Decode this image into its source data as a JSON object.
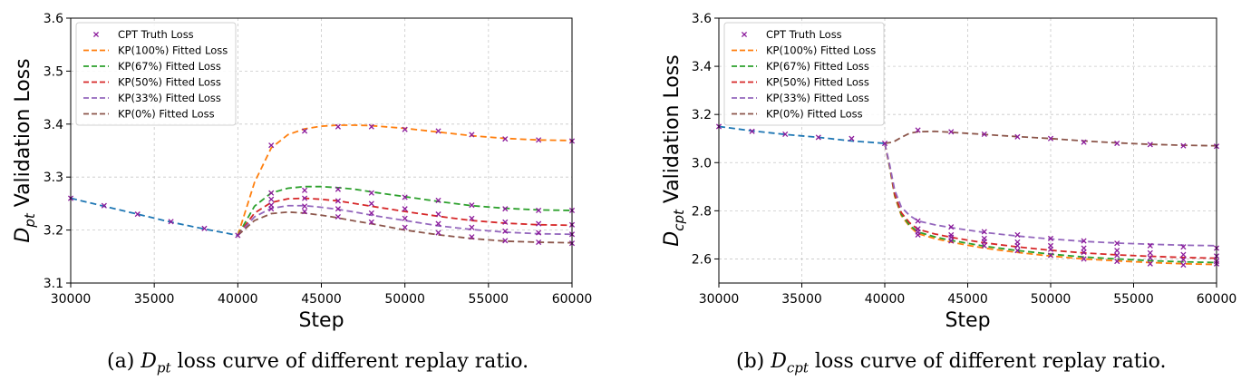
{
  "chart_data": [
    {
      "type": "line",
      "title": "",
      "xlabel": "Step",
      "ylabel_main": "D",
      "ylabel_sub": "pt",
      "ylabel_rest": " Validation Loss",
      "xlim": [
        30000,
        60000
      ],
      "ylim": [
        3.1,
        3.6
      ],
      "xticks": [
        30000,
        35000,
        40000,
        45000,
        50000,
        55000,
        60000
      ],
      "yticks": [
        3.1,
        3.2,
        3.3,
        3.4,
        3.5,
        3.6
      ],
      "grid": true,
      "legend_position": "top-left",
      "caption_prefix": "(a) ",
      "caption_var": "D",
      "caption_sub": "pt",
      "caption_suffix": " loss curve of different replay ratio.",
      "pretrain_line": {
        "color": "#1f77b4",
        "x": [
          30000,
          32000,
          34000,
          36000,
          38000,
          40000
        ],
        "y": [
          3.26,
          3.245,
          3.23,
          3.215,
          3.202,
          3.19
        ]
      },
      "truth_points": {
        "name": "CPT Truth Loss",
        "color": "#8b1a9b",
        "points": [
          [
            30000,
            3.26
          ],
          [
            32000,
            3.246
          ],
          [
            34000,
            3.23
          ],
          [
            36000,
            3.216
          ],
          [
            38000,
            3.203
          ],
          [
            40000,
            3.19
          ],
          [
            42000,
            3.36
          ],
          [
            44000,
            3.387
          ],
          [
            46000,
            3.395
          ],
          [
            48000,
            3.395
          ],
          [
            50000,
            3.39
          ],
          [
            52000,
            3.387
          ],
          [
            54000,
            3.38
          ],
          [
            56000,
            3.372
          ],
          [
            58000,
            3.37
          ],
          [
            60000,
            3.368
          ],
          [
            42000,
            3.27
          ],
          [
            44000,
            3.275
          ],
          [
            46000,
            3.277
          ],
          [
            48000,
            3.27
          ],
          [
            50000,
            3.262
          ],
          [
            52000,
            3.256
          ],
          [
            54000,
            3.247
          ],
          [
            56000,
            3.24
          ],
          [
            58000,
            3.237
          ],
          [
            60000,
            3.237
          ],
          [
            42000,
            3.258
          ],
          [
            44000,
            3.26
          ],
          [
            46000,
            3.255
          ],
          [
            48000,
            3.25
          ],
          [
            50000,
            3.24
          ],
          [
            52000,
            3.23
          ],
          [
            54000,
            3.222
          ],
          [
            56000,
            3.215
          ],
          [
            58000,
            3.212
          ],
          [
            60000,
            3.21
          ],
          [
            42000,
            3.247
          ],
          [
            44000,
            3.245
          ],
          [
            46000,
            3.24
          ],
          [
            48000,
            3.232
          ],
          [
            50000,
            3.222
          ],
          [
            52000,
            3.212
          ],
          [
            54000,
            3.205
          ],
          [
            56000,
            3.198
          ],
          [
            58000,
            3.195
          ],
          [
            60000,
            3.192
          ],
          [
            42000,
            3.24
          ],
          [
            44000,
            3.235
          ],
          [
            46000,
            3.225
          ],
          [
            48000,
            3.215
          ],
          [
            50000,
            3.205
          ],
          [
            52000,
            3.195
          ],
          [
            54000,
            3.187
          ],
          [
            56000,
            3.18
          ],
          [
            58000,
            3.177
          ],
          [
            60000,
            3.175
          ]
        ]
      },
      "series": [
        {
          "name": "KP(100%) Fitted Loss",
          "color": "#ff7f0e",
          "x": [
            40000,
            41000,
            42000,
            43000,
            44000,
            45000,
            46000,
            47000,
            48000,
            50000,
            52000,
            54000,
            56000,
            58000,
            60000
          ],
          "y": [
            3.19,
            3.29,
            3.355,
            3.38,
            3.391,
            3.396,
            3.398,
            3.398,
            3.397,
            3.392,
            3.385,
            3.378,
            3.373,
            3.37,
            3.369
          ]
        },
        {
          "name": "KP(67%) Fitted Loss",
          "color": "#2ca02c",
          "x": [
            40000,
            41000,
            42000,
            43000,
            44000,
            45000,
            46000,
            47000,
            48000,
            50000,
            52000,
            54000,
            56000,
            58000,
            60000
          ],
          "y": [
            3.19,
            3.245,
            3.27,
            3.279,
            3.282,
            3.282,
            3.28,
            3.277,
            3.272,
            3.263,
            3.254,
            3.246,
            3.241,
            3.238,
            3.237
          ]
        },
        {
          "name": "KP(50%) Fitted Loss",
          "color": "#d62728",
          "x": [
            40000,
            41000,
            42000,
            43000,
            44000,
            45000,
            46000,
            47000,
            48000,
            50000,
            52000,
            54000,
            56000,
            58000,
            60000
          ],
          "y": [
            3.19,
            3.232,
            3.252,
            3.259,
            3.26,
            3.258,
            3.255,
            3.25,
            3.245,
            3.235,
            3.226,
            3.218,
            3.213,
            3.21,
            3.209
          ]
        },
        {
          "name": "KP(33%) Fitted Loss",
          "color": "#9467bd",
          "x": [
            40000,
            41000,
            42000,
            43000,
            44000,
            45000,
            46000,
            47000,
            48000,
            50000,
            52000,
            54000,
            56000,
            58000,
            60000
          ],
          "y": [
            3.19,
            3.225,
            3.241,
            3.246,
            3.246,
            3.243,
            3.239,
            3.234,
            3.228,
            3.218,
            3.208,
            3.201,
            3.196,
            3.193,
            3.192
          ]
        },
        {
          "name": "KP(0%) Fitted Loss",
          "color": "#8c564b",
          "x": [
            40000,
            41000,
            42000,
            43000,
            44000,
            45000,
            46000,
            47000,
            48000,
            50000,
            52000,
            54000,
            56000,
            58000,
            60000
          ],
          "y": [
            3.19,
            3.218,
            3.231,
            3.234,
            3.232,
            3.228,
            3.223,
            3.217,
            3.212,
            3.2,
            3.191,
            3.184,
            3.179,
            3.177,
            3.176
          ]
        }
      ]
    },
    {
      "type": "line",
      "title": "",
      "xlabel": "Step",
      "ylabel_main": "D",
      "ylabel_sub": "cpt",
      "ylabel_rest": " Validation Loss",
      "xlim": [
        30000,
        60000
      ],
      "ylim": [
        2.5,
        3.6
      ],
      "xticks": [
        30000,
        35000,
        40000,
        45000,
        50000,
        55000,
        60000
      ],
      "yticks": [
        2.6,
        2.8,
        3.0,
        3.2,
        3.4,
        3.6
      ],
      "grid": true,
      "legend_position": "top-left",
      "caption_prefix": "(b) ",
      "caption_var": "D",
      "caption_sub": "cpt",
      "caption_suffix": " loss curve of different replay ratio.",
      "pretrain_line": {
        "color": "#1f77b4",
        "x": [
          30000,
          32000,
          34000,
          36000,
          38000,
          40000
        ],
        "y": [
          3.15,
          3.132,
          3.117,
          3.105,
          3.09,
          3.08
        ]
      },
      "truth_points": {
        "name": "CPT Truth Loss",
        "color": "#8b1a9b",
        "points": [
          [
            30000,
            3.15
          ],
          [
            32000,
            3.13
          ],
          [
            34000,
            3.118
          ],
          [
            36000,
            3.105
          ],
          [
            38000,
            3.1
          ],
          [
            40000,
            3.08
          ],
          [
            42000,
            3.135
          ],
          [
            44000,
            3.128
          ],
          [
            46000,
            3.118
          ],
          [
            48000,
            3.107
          ],
          [
            50000,
            3.1
          ],
          [
            52000,
            3.085
          ],
          [
            54000,
            3.08
          ],
          [
            56000,
            3.075
          ],
          [
            58000,
            3.07
          ],
          [
            60000,
            3.068
          ],
          [
            42000,
            2.758
          ],
          [
            44000,
            2.733
          ],
          [
            46000,
            2.713
          ],
          [
            48000,
            2.7
          ],
          [
            50000,
            2.685
          ],
          [
            52000,
            2.675
          ],
          [
            54000,
            2.665
          ],
          [
            56000,
            2.655
          ],
          [
            58000,
            2.65
          ],
          [
            60000,
            2.645
          ],
          [
            42000,
            2.725
          ],
          [
            44000,
            2.7
          ],
          [
            46000,
            2.685
          ],
          [
            48000,
            2.67
          ],
          [
            50000,
            2.655
          ],
          [
            52000,
            2.645
          ],
          [
            54000,
            2.635
          ],
          [
            56000,
            2.625
          ],
          [
            58000,
            2.618
          ],
          [
            60000,
            2.612
          ],
          [
            42000,
            2.712
          ],
          [
            44000,
            2.69
          ],
          [
            46000,
            2.672
          ],
          [
            48000,
            2.655
          ],
          [
            50000,
            2.64
          ],
          [
            52000,
            2.628
          ],
          [
            54000,
            2.615
          ],
          [
            56000,
            2.605
          ],
          [
            58000,
            2.597
          ],
          [
            60000,
            2.59
          ],
          [
            42000,
            2.7
          ],
          [
            44000,
            2.675
          ],
          [
            46000,
            2.655
          ],
          [
            48000,
            2.635
          ],
          [
            50000,
            2.615
          ],
          [
            52000,
            2.6
          ],
          [
            54000,
            2.59
          ],
          [
            56000,
            2.58
          ],
          [
            58000,
            2.575
          ],
          [
            60000,
            2.58
          ]
        ]
      },
      "series": [
        {
          "name": "KP(100%) Fitted Loss",
          "color": "#ff7f0e",
          "x": [
            40000,
            40300,
            40600,
            41000,
            41500,
            42000,
            43000,
            44000,
            45000,
            46000,
            48000,
            50000,
            52000,
            54000,
            56000,
            58000,
            60000
          ],
          "y": [
            3.08,
            2.98,
            2.86,
            2.78,
            2.735,
            2.705,
            2.685,
            2.67,
            2.657,
            2.645,
            2.627,
            2.612,
            2.6,
            2.592,
            2.585,
            2.58,
            2.577
          ]
        },
        {
          "name": "KP(67%) Fitted Loss",
          "color": "#2ca02c",
          "x": [
            40000,
            40300,
            40600,
            41000,
            41500,
            42000,
            43000,
            44000,
            45000,
            46000,
            48000,
            50000,
            52000,
            54000,
            56000,
            58000,
            60000
          ],
          "y": [
            3.08,
            2.98,
            2.865,
            2.785,
            2.74,
            2.712,
            2.692,
            2.677,
            2.665,
            2.653,
            2.635,
            2.62,
            2.608,
            2.6,
            2.593,
            2.588,
            2.585
          ]
        },
        {
          "name": "KP(50%) Fitted Loss",
          "color": "#d62728",
          "x": [
            40000,
            40300,
            40600,
            41000,
            41500,
            42000,
            43000,
            44000,
            45000,
            46000,
            48000,
            50000,
            52000,
            54000,
            56000,
            58000,
            60000
          ],
          "y": [
            3.08,
            2.985,
            2.87,
            2.792,
            2.75,
            2.723,
            2.704,
            2.69,
            2.678,
            2.667,
            2.65,
            2.636,
            2.625,
            2.617,
            2.611,
            2.606,
            2.603
          ]
        },
        {
          "name": "KP(33%) Fitted Loss",
          "color": "#9467bd",
          "x": [
            40000,
            40300,
            40600,
            41000,
            41500,
            42000,
            43000,
            44000,
            45000,
            46000,
            48000,
            50000,
            52000,
            54000,
            56000,
            58000,
            60000
          ],
          "y": [
            3.08,
            2.99,
            2.885,
            2.815,
            2.78,
            2.758,
            2.742,
            2.73,
            2.72,
            2.71,
            2.695,
            2.683,
            2.673,
            2.666,
            2.661,
            2.657,
            2.655
          ]
        },
        {
          "name": "KP(0%) Fitted Loss",
          "color": "#8c564b",
          "x": [
            40000,
            40500,
            41000,
            41500,
            42000,
            43000,
            44000,
            46000,
            48000,
            50000,
            52000,
            54000,
            56000,
            58000,
            60000
          ],
          "y": [
            3.08,
            3.085,
            3.105,
            3.122,
            3.128,
            3.13,
            3.126,
            3.117,
            3.108,
            3.1,
            3.09,
            3.082,
            3.076,
            3.072,
            3.07
          ]
        }
      ]
    }
  ]
}
